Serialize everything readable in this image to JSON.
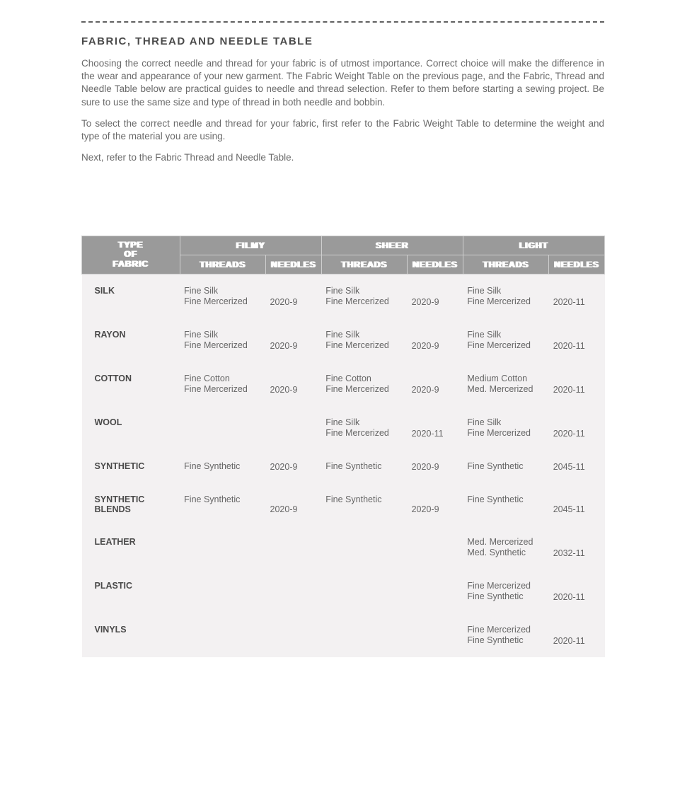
{
  "title": "FABRIC, THREAD AND NEEDLE TABLE",
  "paragraphs": {
    "p1": "Choosing the correct needle and thread for your fabric is of utmost importance. Correct choice will make the difference in the wear and appearance of your new garment. The Fabric Weight Table on the previous page, and the Fabric, Thread and Needle Table below are practical guides to needle and thread selection. Refer to them before starting a sewing project. Be sure to use the same size and type of thread in both needle and bobbin.",
    "p2": "To select the correct needle and thread for your fabric, first refer to the Fabric Weight Table to determine the weight and type of the material you are using.",
    "p3": "Next, refer to the Fabric Thread and Needle Table."
  },
  "table": {
    "header": {
      "fabric": "TYPE\nOF\nFABRIC",
      "groups": [
        {
          "label": "FILMY",
          "threads": "THREADS",
          "needles": "NEEDLES"
        },
        {
          "label": "SHEER",
          "threads": "THREADS",
          "needles": "NEEDLES"
        },
        {
          "label": "LIGHT",
          "threads": "THREADS",
          "needles": "NEEDLES"
        }
      ]
    },
    "rows": [
      {
        "fabric": "SILK",
        "filmy": {
          "threads": "Fine Silk\nFine Mercerized",
          "needles": "2020-9"
        },
        "sheer": {
          "threads": "Fine Silk\nFine Mercerized",
          "needles": "2020-9"
        },
        "light": {
          "threads": "Fine Silk\nFine Mercerized",
          "needles": "2020-11"
        }
      },
      {
        "fabric": "RAYON",
        "filmy": {
          "threads": "Fine Silk\nFine Mercerized",
          "needles": "2020-9"
        },
        "sheer": {
          "threads": "Fine Silk\nFine Mercerized",
          "needles": "2020-9"
        },
        "light": {
          "threads": "Fine Silk\nFine Mercerized",
          "needles": "2020-11"
        }
      },
      {
        "fabric": "COTTON",
        "filmy": {
          "threads": "Fine Cotton\nFine Mercerized",
          "needles": "2020-9"
        },
        "sheer": {
          "threads": "Fine Cotton\nFine Mercerized",
          "needles": "2020-9"
        },
        "light": {
          "threads": "Medium Cotton\nMed. Mercerized",
          "needles": "2020-11"
        }
      },
      {
        "fabric": "WOOL",
        "filmy": {
          "threads": "",
          "needles": ""
        },
        "sheer": {
          "threads": "Fine Silk\nFine Mercerized",
          "needles": "2020-11"
        },
        "light": {
          "threads": "Fine Silk\nFine Mercerized",
          "needles": "2020-11"
        }
      },
      {
        "fabric": "SYNTHETIC",
        "filmy": {
          "threads": "Fine Synthetic",
          "needles": "2020-9"
        },
        "sheer": {
          "threads": "Fine Synthetic",
          "needles": "2020-9"
        },
        "light": {
          "threads": "Fine Synthetic",
          "needles": "2045-11"
        }
      },
      {
        "fabric": "SYNTHETIC\nBLENDS",
        "filmy": {
          "threads": "Fine Synthetic",
          "needles": "2020-9"
        },
        "sheer": {
          "threads": "Fine Synthetic",
          "needles": "2020-9"
        },
        "light": {
          "threads": "Fine Synthetic",
          "needles": "2045-11"
        }
      },
      {
        "fabric": "LEATHER",
        "filmy": {
          "threads": "",
          "needles": ""
        },
        "sheer": {
          "threads": "",
          "needles": ""
        },
        "light": {
          "threads": "Med. Mercerized\nMed. Synthetic",
          "needles": "2032-11"
        }
      },
      {
        "fabric": "PLASTIC",
        "filmy": {
          "threads": "",
          "needles": ""
        },
        "sheer": {
          "threads": "",
          "needles": ""
        },
        "light": {
          "threads": "Fine Mercerized\nFine Synthetic",
          "needles": "2020-11"
        }
      },
      {
        "fabric": "VINYLS",
        "filmy": {
          "threads": "",
          "needles": ""
        },
        "sheer": {
          "threads": "",
          "needles": ""
        },
        "light": {
          "threads": "Fine Mercerized\nFine Synthetic",
          "needles": "2020-11"
        }
      }
    ],
    "style": {
      "header_bg": "#9a9a9a",
      "header_fg": "#ffffff",
      "body_bg": "#f3f1f2",
      "text_color": "#5a5a5a",
      "font_size_body": 12.5,
      "font_size_header": 12
    }
  }
}
